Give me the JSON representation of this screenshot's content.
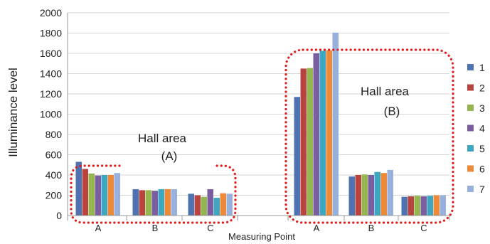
{
  "chart_data": {
    "type": "bar",
    "ylabel": "Illuminance  level",
    "xlabel": "Measuring Point",
    "ylim": [
      0,
      2000
    ],
    "yticks": [
      0,
      200,
      400,
      600,
      800,
      1000,
      1200,
      1400,
      1600,
      1800,
      2000
    ],
    "grid": true,
    "legend_position": "right",
    "colors": [
      "#4f73b2",
      "#b84440",
      "#95b64e",
      "#7a5ea0",
      "#3da6c1",
      "#ec8a3a",
      "#98b0dc"
    ],
    "categories": [
      "A",
      "B",
      "C",
      "A",
      "B",
      "C"
    ],
    "series": [
      {
        "name": "1",
        "values": [
          530,
          260,
          215,
          1170,
          385,
          185
        ]
      },
      {
        "name": "2",
        "values": [
          460,
          250,
          200,
          1450,
          400,
          190
        ]
      },
      {
        "name": "3",
        "values": [
          415,
          250,
          185,
          1455,
          405,
          195
        ]
      },
      {
        "name": "4",
        "values": [
          395,
          245,
          260,
          1600,
          400,
          190
        ]
      },
      {
        "name": "5",
        "values": [
          400,
          260,
          175,
          1625,
          430,
          195
        ]
      },
      {
        "name": "6",
        "values": [
          400,
          260,
          220,
          1630,
          420,
          200
        ]
      },
      {
        "name": "7",
        "values": [
          420,
          260,
          215,
          1805,
          450,
          200
        ]
      }
    ],
    "annotations": [
      {
        "line1": "Hall  area",
        "line2": "(A)"
      },
      {
        "line1": "Hall  area",
        "line2": "(B)"
      }
    ]
  }
}
